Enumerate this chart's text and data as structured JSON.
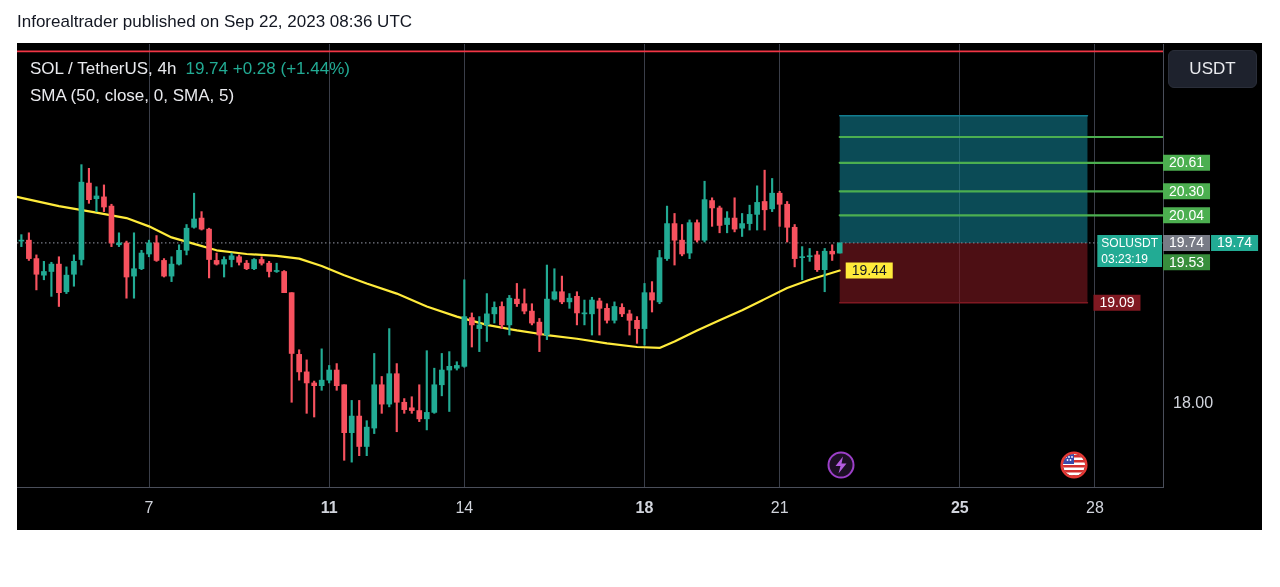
{
  "chart_data": {
    "type": "candlestick",
    "title": "SOL / TetherUS, 4h",
    "subtitle": "19.74 +0.28 (+1.44%)",
    "ylabel": "USDT",
    "annotations": [
      "Inforealtrader published on Sep 22, 2023 08:36 UTC",
      "SMA (50, close, 0, SMA, 5)",
      "SOLUSDT",
      "03:23:19"
    ],
    "xlim": [
      "2023-09-04T01:40",
      "2023-09-29T12:15"
    ],
    "xticks": [
      {
        "value": "2023-09-07",
        "label": "7"
      },
      {
        "value": "2023-09-11",
        "label": "11"
      },
      {
        "value": "2023-09-14",
        "label": "14"
      },
      {
        "value": "2023-09-18",
        "label": "18"
      },
      {
        "value": "2023-09-21",
        "label": "21"
      },
      {
        "value": "2023-09-25",
        "label": "25"
      },
      {
        "value": "2023-09-28",
        "label": "28"
      }
    ],
    "ylim": [
      17.09,
      21.9
    ],
    "yticks": [
      {
        "value": 18,
        "label": "18.00"
      },
      {
        "value": 19.53,
        "label": "19.53"
      }
    ],
    "grid": "x",
    "ref_lines": [
      {
        "axis": "y",
        "value": 21.82,
        "color": "#f23645",
        "line_style": "solid"
      },
      {
        "axis": "y",
        "value": 19.74,
        "label": "19.74",
        "color": "#787b86",
        "line_style": "dotted"
      }
    ],
    "series": [
      {
        "x": [
          "2023-09-04T04:00",
          "2023-09-04T08:00",
          "2023-09-04T12:00",
          "2023-09-04T16:00",
          "2023-09-04T20:00",
          "2023-09-05T00:00",
          "2023-09-05T04:00",
          "2023-09-05T08:00",
          "2023-09-05T12:00",
          "2023-09-05T16:00",
          "2023-09-05T20:00",
          "2023-09-06T00:00",
          "2023-09-06T04:00",
          "2023-09-06T08:00",
          "2023-09-06T12:00",
          "2023-09-06T16:00",
          "2023-09-06T20:00",
          "2023-09-07T00:00",
          "2023-09-07T04:00",
          "2023-09-07T08:00",
          "2023-09-07T12:00",
          "2023-09-07T16:00",
          "2023-09-07T20:00",
          "2023-09-08T00:00",
          "2023-09-08T04:00",
          "2023-09-08T08:00",
          "2023-09-08T12:00",
          "2023-09-08T16:00",
          "2023-09-08T20:00",
          "2023-09-09T00:00",
          "2023-09-09T04:00",
          "2023-09-09T08:00",
          "2023-09-09T12:00",
          "2023-09-09T16:00",
          "2023-09-09T20:00",
          "2023-09-10T00:00",
          "2023-09-10T04:00",
          "2023-09-10T08:00",
          "2023-09-10T12:00",
          "2023-09-10T16:00",
          "2023-09-10T20:00",
          "2023-09-11T00:00",
          "2023-09-11T04:00",
          "2023-09-11T08:00",
          "2023-09-11T12:00",
          "2023-09-11T16:00",
          "2023-09-11T20:00",
          "2023-09-12T00:00",
          "2023-09-12T04:00",
          "2023-09-12T08:00",
          "2023-09-12T12:00",
          "2023-09-12T16:00",
          "2023-09-12T20:00",
          "2023-09-13T00:00",
          "2023-09-13T04:00",
          "2023-09-13T08:00",
          "2023-09-13T12:00",
          "2023-09-13T16:00",
          "2023-09-13T20:00",
          "2023-09-14T00:00",
          "2023-09-14T04:00",
          "2023-09-14T08:00",
          "2023-09-14T12:00",
          "2023-09-14T16:00",
          "2023-09-14T20:00",
          "2023-09-15T00:00",
          "2023-09-15T04:00",
          "2023-09-15T08:00",
          "2023-09-15T12:00",
          "2023-09-15T16:00",
          "2023-09-15T20:00",
          "2023-09-16T00:00",
          "2023-09-16T04:00",
          "2023-09-16T08:00",
          "2023-09-16T12:00",
          "2023-09-16T16:00",
          "2023-09-16T20:00",
          "2023-09-17T00:00",
          "2023-09-17T04:00",
          "2023-09-17T08:00",
          "2023-09-17T12:00",
          "2023-09-17T16:00",
          "2023-09-17T20:00",
          "2023-09-18T00:00",
          "2023-09-18T04:00",
          "2023-09-18T08:00",
          "2023-09-18T12:00",
          "2023-09-18T16:00",
          "2023-09-18T20:00",
          "2023-09-19T00:00",
          "2023-09-19T04:00",
          "2023-09-19T08:00",
          "2023-09-19T12:00",
          "2023-09-19T16:00",
          "2023-09-19T20:00",
          "2023-09-20T00:00",
          "2023-09-20T04:00",
          "2023-09-20T08:00",
          "2023-09-20T12:00",
          "2023-09-20T16:00",
          "2023-09-20T20:00",
          "2023-09-21T00:00",
          "2023-09-21T04:00",
          "2023-09-21T08:00",
          "2023-09-21T12:00",
          "2023-09-21T16:00",
          "2023-09-21T20:00",
          "2023-09-22T00:00",
          "2023-09-22T04:00",
          "2023-09-22T08:00"
        ],
        "ohlc": [
          [
            19.76,
            19.83,
            19.7,
            19.77
          ],
          [
            19.77,
            19.85,
            19.55,
            19.57
          ],
          [
            19.57,
            19.61,
            19.23,
            19.4
          ],
          [
            19.39,
            19.54,
            19.34,
            19.43
          ],
          [
            19.43,
            19.53,
            19.16,
            19.51
          ],
          [
            19.51,
            19.59,
            19.05,
            19.2
          ],
          [
            19.21,
            19.48,
            19.19,
            19.39
          ],
          [
            19.4,
            19.61,
            19.27,
            19.54
          ],
          [
            19.56,
            20.59,
            19.5,
            20.4
          ],
          [
            20.39,
            20.55,
            20.17,
            20.21
          ],
          [
            20.22,
            20.35,
            20.08,
            20.25
          ],
          [
            20.24,
            20.37,
            20.08,
            20.13
          ],
          [
            20.14,
            20.16,
            19.7,
            19.74
          ],
          [
            19.72,
            19.85,
            19.7,
            19.74
          ],
          [
            19.74,
            19.76,
            19.14,
            19.37
          ],
          [
            19.38,
            19.85,
            19.14,
            19.46
          ],
          [
            19.46,
            19.66,
            19.45,
            19.63
          ],
          [
            19.62,
            19.77,
            19.59,
            19.74
          ],
          [
            19.74,
            19.82,
            19.54,
            19.55
          ],
          [
            19.55,
            19.57,
            19.37,
            19.38
          ],
          [
            19.38,
            19.59,
            19.32,
            19.51
          ],
          [
            19.51,
            19.72,
            19.5,
            19.66
          ],
          [
            19.66,
            19.94,
            19.61,
            19.9
          ],
          [
            19.91,
            20.28,
            19.9,
            20.0
          ],
          [
            20.01,
            20.08,
            19.88,
            19.89
          ],
          [
            19.89,
            19.9,
            19.36,
            19.56
          ],
          [
            19.55,
            19.63,
            19.5,
            19.51
          ],
          [
            19.51,
            19.59,
            19.37,
            19.56
          ],
          [
            19.56,
            19.63,
            19.48,
            19.6
          ],
          [
            19.59,
            19.61,
            19.5,
            19.53
          ],
          [
            19.52,
            19.55,
            19.45,
            19.46
          ],
          [
            19.46,
            19.57,
            19.45,
            19.56
          ],
          [
            19.56,
            19.59,
            19.5,
            19.52
          ],
          [
            19.52,
            19.54,
            19.37,
            19.43
          ],
          [
            19.43,
            19.52,
            19.42,
            19.44
          ],
          [
            19.43,
            19.44,
            19.2,
            19.2
          ],
          [
            19.2,
            19.2,
            18.01,
            18.54
          ],
          [
            18.53,
            18.58,
            18.25,
            18.34
          ],
          [
            18.34,
            18.47,
            17.89,
            18.22
          ],
          [
            18.22,
            18.24,
            17.85,
            18.19
          ],
          [
            18.19,
            18.59,
            18.14,
            18.25
          ],
          [
            18.25,
            18.41,
            18.22,
            18.36
          ],
          [
            18.36,
            18.43,
            18.14,
            18.19
          ],
          [
            18.2,
            18.2,
            17.38,
            17.68
          ],
          [
            17.68,
            18.03,
            17.36,
            17.86
          ],
          [
            17.86,
            18.03,
            17.43,
            17.53
          ],
          [
            17.53,
            17.81,
            17.43,
            17.74
          ],
          [
            17.73,
            18.54,
            17.67,
            18.2
          ],
          [
            18.2,
            18.29,
            17.89,
            17.99
          ],
          [
            17.99,
            18.81,
            17.96,
            18.32
          ],
          [
            18.32,
            18.43,
            17.69,
            18.01
          ],
          [
            18.01,
            18.05,
            17.89,
            17.93
          ],
          [
            17.95,
            18.07,
            17.89,
            17.92
          ],
          [
            17.92,
            18.2,
            17.8,
            17.83
          ],
          [
            17.83,
            18.57,
            17.71,
            17.9
          ],
          [
            17.9,
            18.38,
            17.89,
            18.2
          ],
          [
            18.2,
            18.54,
            18.08,
            18.36
          ],
          [
            18.36,
            18.56,
            17.91,
            18.4
          ],
          [
            18.38,
            18.45,
            18.36,
            18.41
          ],
          [
            18.4,
            19.34,
            18.39,
            18.94
          ],
          [
            18.93,
            18.98,
            18.61,
            18.85
          ],
          [
            18.81,
            18.94,
            18.56,
            18.85
          ],
          [
            18.85,
            19.19,
            18.67,
            18.97
          ],
          [
            18.97,
            19.1,
            18.87,
            19.04
          ],
          [
            19.05,
            19.1,
            18.81,
            18.85
          ],
          [
            18.85,
            19.17,
            18.74,
            19.14
          ],
          [
            19.13,
            19.3,
            19.05,
            19.08
          ],
          [
            19.08,
            19.24,
            18.97,
            19.0
          ],
          [
            19.0,
            19.08,
            18.85,
            18.87
          ],
          [
            18.88,
            18.92,
            18.56,
            18.74
          ],
          [
            18.74,
            19.5,
            18.69,
            19.13
          ],
          [
            19.13,
            19.46,
            19.12,
            19.21
          ],
          [
            19.21,
            19.38,
            19.08,
            19.1
          ],
          [
            19.1,
            19.19,
            19.03,
            19.14
          ],
          [
            19.16,
            19.21,
            18.85,
            18.98
          ],
          [
            18.97,
            19.12,
            18.85,
            18.98
          ],
          [
            18.97,
            19.15,
            18.74,
            19.12
          ],
          [
            19.11,
            19.14,
            18.74,
            19.03
          ],
          [
            19.03,
            19.08,
            18.87,
            18.9
          ],
          [
            18.9,
            19.1,
            18.87,
            19.05
          ],
          [
            19.04,
            19.08,
            18.94,
            18.97
          ],
          [
            18.97,
            19.01,
            18.74,
            18.9
          ],
          [
            18.9,
            18.94,
            18.65,
            18.81
          ],
          [
            18.81,
            19.3,
            18.63,
            19.2
          ],
          [
            19.2,
            19.32,
            18.99,
            19.12
          ],
          [
            19.1,
            19.66,
            19.08,
            19.58
          ],
          [
            19.57,
            20.14,
            19.55,
            19.95
          ],
          [
            19.95,
            20.06,
            19.5,
            19.77
          ],
          [
            19.77,
            19.94,
            19.6,
            19.62
          ],
          [
            19.63,
            19.99,
            19.57,
            19.96
          ],
          [
            19.96,
            19.99,
            19.75,
            19.77
          ],
          [
            19.77,
            20.41,
            19.75,
            20.21
          ],
          [
            20.2,
            20.23,
            19.92,
            20.12
          ],
          [
            20.12,
            20.14,
            19.85,
            19.93
          ],
          [
            19.94,
            20.08,
            19.85,
            20.01
          ],
          [
            20.01,
            20.23,
            19.86,
            19.89
          ],
          [
            19.9,
            20.06,
            19.81,
            19.95
          ],
          [
            19.95,
            20.15,
            19.88,
            20.05
          ],
          [
            20.05,
            20.36,
            19.88,
            20.18
          ],
          [
            20.19,
            20.53,
            19.88,
            20.1
          ],
          [
            20.11,
            20.44,
            20.08,
            20.28
          ],
          [
            20.28,
            20.3,
            19.92,
            20.16
          ],
          [
            20.16,
            20.19,
            19.75,
            19.91
          ],
          [
            19.91,
            19.94,
            19.48,
            19.57
          ],
          [
            19.58,
            19.7,
            19.34,
            19.59
          ],
          [
            19.59,
            19.68,
            19.54,
            19.6
          ],
          [
            19.61,
            19.65,
            19.43,
            19.45
          ],
          [
            19.45,
            19.68,
            19.21,
            19.65
          ],
          [
            19.65,
            19.72,
            19.55,
            19.62
          ],
          [
            19.63,
            19.74,
            19.63,
            19.74
          ]
        ],
        "colors": [
          "#22ab94",
          "#f7525f",
          "#f7525f",
          "#22ab94",
          "#22ab94",
          "#f7525f",
          "#22ab94",
          "#22ab94",
          "#22ab94",
          "#f7525f",
          "#22ab94",
          "#f7525f",
          "#f7525f",
          "#22ab94",
          "#f7525f",
          "#22ab94",
          "#22ab94",
          "#22ab94",
          "#f7525f",
          "#f7525f",
          "#22ab94",
          "#22ab94",
          "#22ab94",
          "#22ab94",
          "#f7525f",
          "#f7525f",
          "#f7525f",
          "#22ab94",
          "#22ab94",
          "#f7525f",
          "#f7525f",
          "#22ab94",
          "#f7525f",
          "#f7525f",
          "#22ab94",
          "#f7525f",
          "#f7525f",
          "#f7525f",
          "#f7525f",
          "#f7525f",
          "#22ab94",
          "#22ab94",
          "#f7525f",
          "#f7525f",
          "#22ab94",
          "#f7525f",
          "#22ab94",
          "#22ab94",
          "#f7525f",
          "#22ab94",
          "#f7525f",
          "#f7525f",
          "#f7525f",
          "#f7525f",
          "#22ab94",
          "#22ab94",
          "#22ab94",
          "#22ab94",
          "#22ab94",
          "#22ab94",
          "#f7525f",
          "#22ab94",
          "#22ab94",
          "#22ab94",
          "#f7525f",
          "#22ab94",
          "#f7525f",
          "#f7525f",
          "#f7525f",
          "#f7525f",
          "#22ab94",
          "#22ab94",
          "#f7525f",
          "#22ab94",
          "#f7525f",
          "#22ab94",
          "#22ab94",
          "#f7525f",
          "#f7525f",
          "#22ab94",
          "#f7525f",
          "#f7525f",
          "#f7525f",
          "#22ab94",
          "#f7525f",
          "#22ab94",
          "#22ab94",
          "#f7525f",
          "#f7525f",
          "#22ab94",
          "#f7525f",
          "#22ab94",
          "#f7525f",
          "#f7525f",
          "#22ab94",
          "#f7525f",
          "#22ab94",
          "#22ab94",
          "#22ab94",
          "#f7525f",
          "#22ab94",
          "#f7525f",
          "#f7525f",
          "#f7525f",
          "#22ab94",
          "#22ab94",
          "#f7525f",
          "#22ab94",
          "#f7525f",
          "#22ab94"
        ],
        "value_labels": [
          null,
          null,
          null,
          null,
          null,
          null,
          null,
          null,
          null,
          null,
          null,
          null,
          null,
          null,
          null,
          null,
          null,
          null,
          null,
          null,
          null,
          null,
          null,
          null,
          null,
          null,
          null,
          null,
          null,
          null,
          null,
          null,
          null,
          null,
          null,
          null,
          null,
          null,
          null,
          null,
          null,
          null,
          null,
          null,
          null,
          null,
          null,
          null,
          null,
          null,
          null,
          null,
          null,
          null,
          null,
          null,
          null,
          null,
          null,
          null,
          null,
          null,
          null,
          null,
          null,
          null,
          null,
          null,
          null,
          null,
          null,
          null,
          null,
          null,
          null,
          null,
          null,
          null,
          null,
          null,
          null,
          null,
          null,
          null,
          null,
          null,
          null,
          null,
          null,
          null,
          null,
          null,
          null,
          null,
          null,
          null,
          null,
          null,
          null,
          null,
          null,
          null,
          null,
          null,
          null,
          null,
          null,
          null,
          null,
          "19.74"
        ]
      },
      {
        "type": "line",
        "color": "#127d8f",
        "x": [
          "2023-09-22T08:00",
          "2023-09-27T20:00"
        ],
        "values": [
          21.12,
          21.12
        ],
        "lower": [
          19.74,
          19.74
        ],
        "upper": [
          21.12,
          21.12
        ]
      },
      {
        "type": "line",
        "color": "#801922",
        "x": [
          "2023-09-22T08:00",
          "2023-09-27T20:00"
        ],
        "values": [
          19.09,
          19.09
        ],
        "lower": [
          19.09,
          19.09
        ],
        "upper": [
          19.74,
          19.74
        ],
        "value_labels": [
          null,
          "19.09"
        ]
      },
      {
        "type": "line",
        "color": "#ffeb3b",
        "x": [
          "2023-09-04T01:40",
          "2023-09-04T04:00",
          "2023-09-05T00:00",
          "2023-09-05T20:00",
          "2023-09-06T12:00",
          "2023-09-07T00:00",
          "2023-09-07T12:00",
          "2023-09-08T00:00",
          "2023-09-08T12:00",
          "2023-09-09T04:00",
          "2023-09-09T20:00",
          "2023-09-10T08:00",
          "2023-09-10T20:00",
          "2023-09-11T08:00",
          "2023-09-11T20:00",
          "2023-09-12T12:00",
          "2023-09-13T04:00",
          "2023-09-13T20:00",
          "2023-09-14T12:00",
          "2023-09-15T04:00",
          "2023-09-15T20:00",
          "2023-09-16T12:00",
          "2023-09-17T04:00",
          "2023-09-17T20:00",
          "2023-09-18T08:00",
          "2023-09-18T16:00",
          "2023-09-19T04:00",
          "2023-09-19T16:00",
          "2023-09-20T04:00",
          "2023-09-20T16:00",
          "2023-09-21T04:00",
          "2023-09-21T16:00",
          "2023-09-22T08:00"
        ],
        "values": [
          20.24,
          20.23,
          20.14,
          20.07,
          20.01,
          19.92,
          19.8,
          19.73,
          19.66,
          19.62,
          19.6,
          19.57,
          19.49,
          19.39,
          19.3,
          19.19,
          19.05,
          18.94,
          18.85,
          18.79,
          18.74,
          18.7,
          18.65,
          18.61,
          18.6,
          18.67,
          18.79,
          18.9,
          19.01,
          19.13,
          19.25,
          19.34,
          19.44
        ],
        "value_labels": [
          null,
          null,
          null,
          null,
          null,
          null,
          null,
          null,
          null,
          null,
          null,
          null,
          null,
          null,
          null,
          null,
          null,
          null,
          null,
          null,
          null,
          null,
          null,
          null,
          null,
          null,
          null,
          null,
          null,
          null,
          null,
          null,
          "19.44"
        ]
      },
      {
        "type": "line",
        "color": "#4caf50",
        "x": [
          "2023-09-22T08:00",
          "2023-09-29T12:15"
        ],
        "values": [
          20.89,
          20.89
        ]
      },
      {
        "type": "line",
        "color": "#4caf50",
        "x": [
          "2023-09-22T08:00",
          "2023-09-29T12:15"
        ],
        "values": [
          20.61,
          20.61
        ],
        "value_labels": [
          null,
          "20.61"
        ]
      },
      {
        "type": "line",
        "color": "#4caf50",
        "x": [
          "2023-09-22T08:00",
          "2023-09-29T12:15"
        ],
        "values": [
          20.3,
          20.3
        ],
        "value_labels": [
          null,
          "20.30"
        ]
      },
      {
        "type": "line",
        "color": "#4caf50",
        "x": [
          "2023-09-22T08:00",
          "2023-09-29T12:15"
        ],
        "values": [
          20.04,
          20.04
        ],
        "value_labels": [
          null,
          "20.04"
        ]
      }
    ]
  }
}
